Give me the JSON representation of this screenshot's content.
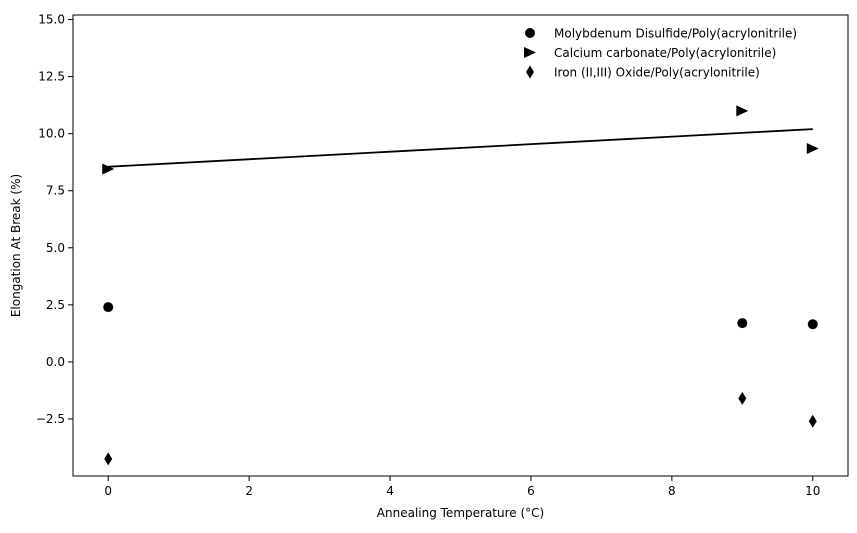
{
  "chart_data": {
    "type": "scatter",
    "title": "",
    "xlabel": "Annealing Temperature (°C)",
    "ylabel": "Elongation At Break (%)",
    "xlim": [
      -0.5,
      10.5
    ],
    "ylim": [
      -5.0,
      15.2
    ],
    "x_ticks": [
      0,
      2,
      4,
      6,
      8,
      10
    ],
    "x_tick_labels": [
      "0",
      "2",
      "4",
      "6",
      "8",
      "10"
    ],
    "y_ticks": [
      -2.5,
      0.0,
      2.5,
      5.0,
      7.5,
      10.0,
      12.5,
      15.0
    ],
    "y_tick_labels": [
      "−2.5",
      "0.0",
      "2.5",
      "5.0",
      "7.5",
      "10.0",
      "12.5",
      "15.0"
    ],
    "grid": false,
    "legend_position": "top-right",
    "series": [
      {
        "name": "Molybdenum Disulfide/Poly(acrylonitrile)",
        "marker": "circle",
        "color": "#000000",
        "points": [
          {
            "x": 0,
            "y": 2.4
          },
          {
            "x": 9,
            "y": 1.7
          },
          {
            "x": 10,
            "y": 1.65
          }
        ]
      },
      {
        "name": "Calcium carbonate/Poly(acrylonitrile)",
        "marker": "triangle-right",
        "color": "#000000",
        "points": [
          {
            "x": 0,
            "y": 8.45
          },
          {
            "x": 9,
            "y": 11.0
          },
          {
            "x": 10,
            "y": 9.35
          }
        ]
      },
      {
        "name": "Iron (II,III) Oxide/Poly(acrylonitrile)",
        "marker": "thin-diamond",
        "color": "#000000",
        "points": [
          {
            "x": 0,
            "y": -4.25
          },
          {
            "x": 9,
            "y": -1.6
          },
          {
            "x": 10,
            "y": -2.6
          }
        ]
      }
    ],
    "trend_lines": [
      {
        "color": "#000000",
        "points": [
          {
            "x": 0,
            "y": 8.55
          },
          {
            "x": 10,
            "y": 10.2
          }
        ]
      }
    ]
  }
}
